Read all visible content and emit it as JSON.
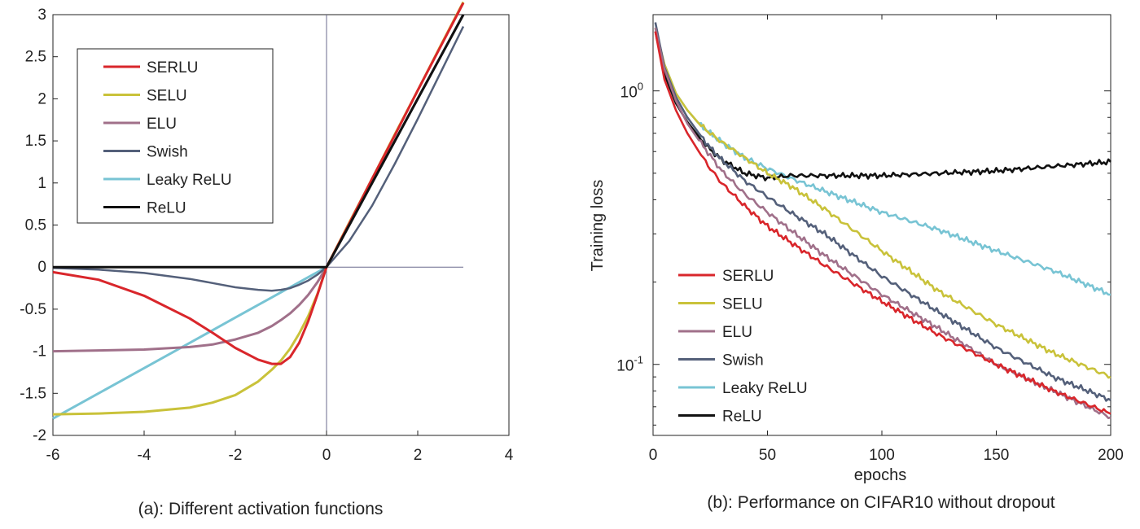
{
  "chart_data": [
    {
      "type": "line",
      "caption": "(a): Different activation functions",
      "xlabel": "",
      "ylabel": "",
      "xlim": [
        -6,
        4
      ],
      "ylim": [
        -2,
        3
      ],
      "xticks": [
        -6,
        -4,
        -2,
        0,
        2,
        4
      ],
      "yticks": [
        -2,
        -1.5,
        -1,
        -0.5,
        0,
        0.5,
        1,
        1.5,
        2,
        2.5,
        3
      ],
      "xtick_labels": [
        "-6",
        "-4",
        "-2",
        "0",
        "2",
        "4"
      ],
      "ytick_labels": [
        "-2",
        "-1.5",
        "-1",
        "-0.5",
        "0",
        "0.5",
        "1",
        "1.5",
        "2",
        "2.5",
        "3"
      ],
      "grid": false,
      "legend_position": "top-left",
      "reference_lines": {
        "vertical_x": 0,
        "horizontal_y": 0,
        "color": "#6a6a8e"
      },
      "x": [
        -6,
        -5,
        -4,
        -3,
        -2.5,
        -2,
        -1.5,
        -1.2,
        -1,
        -0.8,
        -0.6,
        -0.4,
        -0.2,
        0,
        0.5,
        1,
        1.5,
        2,
        2.5,
        3
      ],
      "series": [
        {
          "name": "SERLU",
          "color": "#d9262b",
          "values": [
            -0.06,
            -0.15,
            -0.34,
            -0.61,
            -0.78,
            -0.96,
            -1.1,
            -1.15,
            -1.15,
            -1.07,
            -0.9,
            -0.64,
            -0.33,
            0,
            0.52,
            1.05,
            1.57,
            2.1,
            2.62,
            3.14
          ]
        },
        {
          "name": "SELU",
          "color": "#c9c23a",
          "values": [
            -1.75,
            -1.74,
            -1.72,
            -1.67,
            -1.61,
            -1.52,
            -1.36,
            -1.22,
            -1.11,
            -0.97,
            -0.79,
            -0.58,
            -0.32,
            0,
            0.53,
            1.05,
            1.58,
            2.1,
            2.63,
            3.15
          ]
        },
        {
          "name": "ELU",
          "color": "#a0708a",
          "values": [
            -1.0,
            -0.99,
            -0.98,
            -0.95,
            -0.92,
            -0.86,
            -0.78,
            -0.7,
            -0.63,
            -0.55,
            -0.45,
            -0.33,
            -0.18,
            0,
            0.5,
            1.0,
            1.5,
            2.0,
            2.5,
            3.0
          ]
        },
        {
          "name": "Swish",
          "color": "#54607a",
          "values": [
            -0.01,
            -0.03,
            -0.07,
            -0.14,
            -0.19,
            -0.24,
            -0.27,
            -0.28,
            -0.27,
            -0.25,
            -0.21,
            -0.16,
            -0.09,
            0,
            0.31,
            0.73,
            1.23,
            1.76,
            2.31,
            2.86
          ]
        },
        {
          "name": "Leaky ReLU",
          "color": "#78c4d4",
          "values": [
            -1.8,
            -1.5,
            -1.2,
            -0.9,
            -0.75,
            -0.6,
            -0.45,
            -0.36,
            -0.3,
            -0.24,
            -0.18,
            -0.12,
            -0.06,
            0,
            0.5,
            1.0,
            1.5,
            2.0,
            2.5,
            3.0
          ]
        },
        {
          "name": "ReLU",
          "color": "#111111",
          "values": [
            0,
            0,
            0,
            0,
            0,
            0,
            0,
            0,
            0,
            0,
            0,
            0,
            0,
            0,
            0.5,
            1.0,
            1.5,
            2.0,
            2.5,
            3.0
          ]
        }
      ]
    },
    {
      "type": "line",
      "caption": "(b): Performance on CIFAR10 without dropout",
      "xlabel": "epochs",
      "ylabel": "Training loss",
      "xlim": [
        0,
        200
      ],
      "ylim": [
        0.055,
        1.9
      ],
      "yscale": "log",
      "xticks": [
        0,
        50,
        100,
        150,
        200
      ],
      "xtick_labels": [
        "0",
        "50",
        "100",
        "150",
        "200"
      ],
      "ytick_major": [
        {
          "value": 0.1,
          "base": "10",
          "exp": "-1"
        },
        {
          "value": 1,
          "base": "10",
          "exp": "0"
        }
      ],
      "grid": false,
      "legend_position": "bottom-left",
      "x": [
        1,
        5,
        10,
        15,
        20,
        25,
        30,
        40,
        50,
        60,
        75,
        100,
        125,
        150,
        175,
        200
      ],
      "series": [
        {
          "name": "SERLU",
          "color": "#d9262b",
          "values": [
            1.65,
            1.1,
            0.85,
            0.7,
            0.6,
            0.52,
            0.46,
            0.38,
            0.32,
            0.28,
            0.23,
            0.17,
            0.128,
            0.1,
            0.08,
            0.066
          ]
        },
        {
          "name": "SELU",
          "color": "#c9c23a",
          "values": [
            1.7,
            1.25,
            0.98,
            0.85,
            0.76,
            0.7,
            0.65,
            0.57,
            0.5,
            0.45,
            0.37,
            0.26,
            0.185,
            0.14,
            0.11,
            0.09
          ]
        },
        {
          "name": "ELU",
          "color": "#a0708a",
          "values": [
            1.7,
            1.2,
            0.92,
            0.76,
            0.66,
            0.58,
            0.51,
            0.42,
            0.36,
            0.31,
            0.25,
            0.18,
            0.135,
            0.1,
            0.08,
            0.064
          ]
        },
        {
          "name": "Swish",
          "color": "#54607a",
          "values": [
            1.78,
            1.22,
            0.95,
            0.8,
            0.7,
            0.62,
            0.56,
            0.47,
            0.41,
            0.36,
            0.3,
            0.21,
            0.155,
            0.115,
            0.09,
            0.074
          ]
        },
        {
          "name": "Leaky ReLU",
          "color": "#78c4d4",
          "values": [
            1.7,
            1.25,
            0.98,
            0.85,
            0.76,
            0.7,
            0.65,
            0.57,
            0.52,
            0.48,
            0.43,
            0.36,
            0.31,
            0.26,
            0.22,
            0.18
          ]
        },
        {
          "name": "ReLU",
          "color": "#111111",
          "values": [
            1.65,
            1.15,
            0.9,
            0.77,
            0.68,
            0.61,
            0.56,
            0.5,
            0.48,
            0.49,
            0.49,
            0.49,
            0.5,
            0.51,
            0.53,
            0.55
          ]
        }
      ]
    }
  ]
}
